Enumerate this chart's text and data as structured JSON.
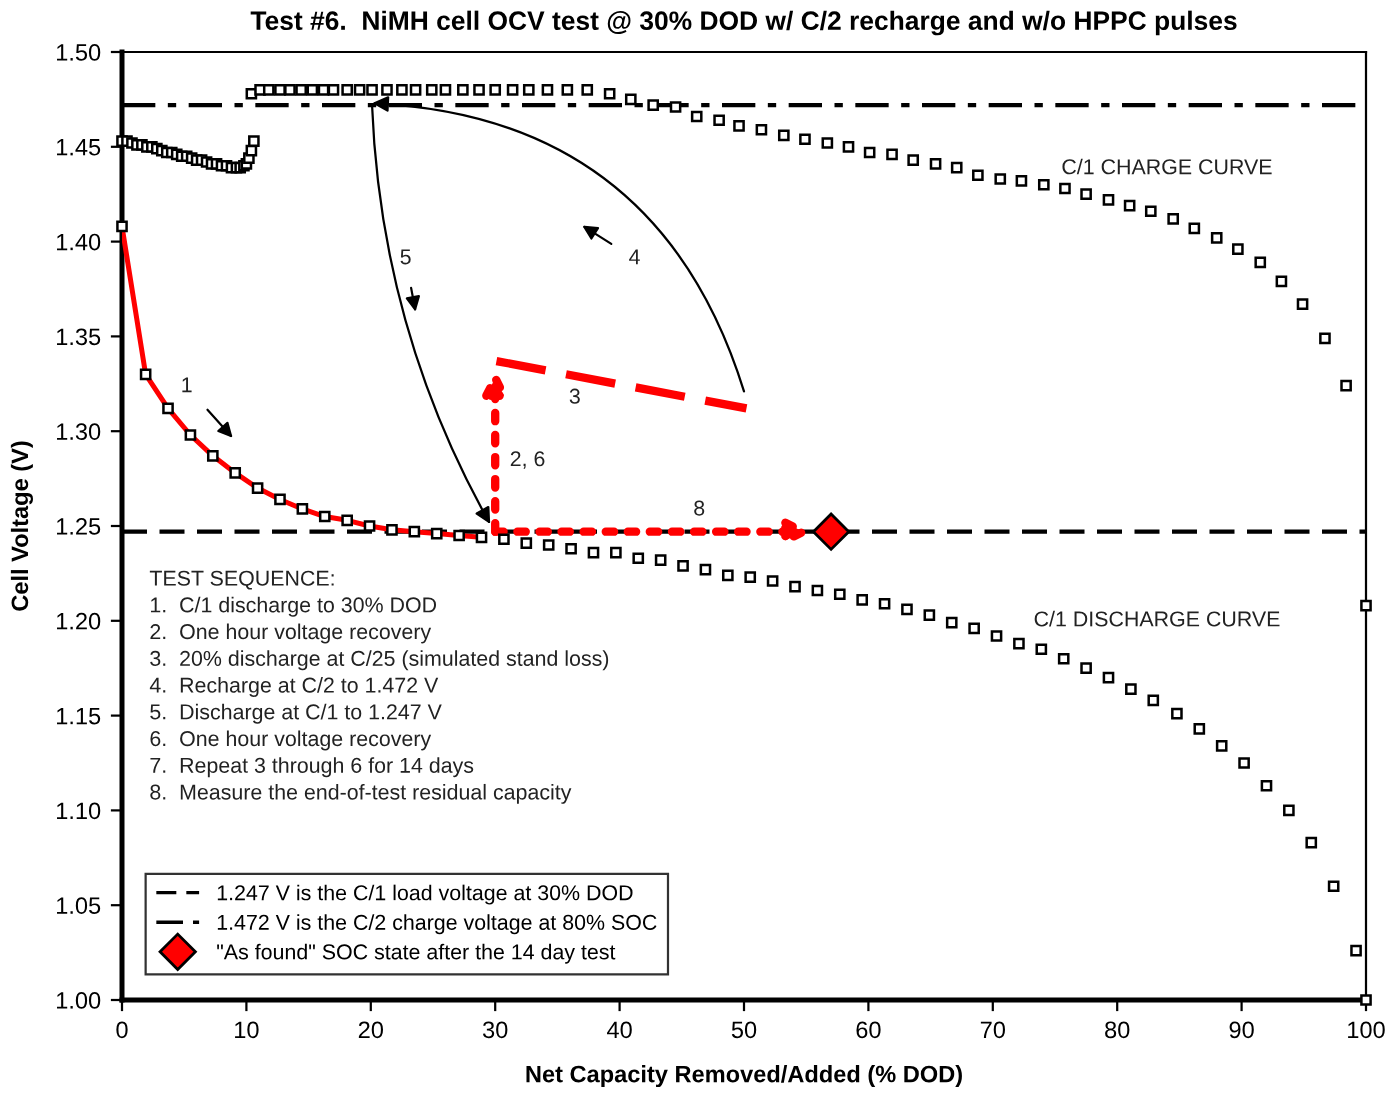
{
  "chart_data": {
    "type": "scatter",
    "title": "Test #6.  NiMH cell OCV test @ 30% DOD w/ C/2 recharge and w/o HPPC pulses",
    "xlabel": "Net Capacity Removed/Added (% DOD)",
    "ylabel": "Cell Voltage (V)",
    "xlim": [
      0,
      100
    ],
    "xticks": [
      0,
      10,
      20,
      30,
      40,
      50,
      60,
      70,
      80,
      90,
      100
    ],
    "ylim": [
      1.0,
      1.5
    ],
    "yticks": [
      {
        "value": 1.0,
        "label": "1.00"
      },
      {
        "value": 1.05,
        "label": "1.05"
      },
      {
        "value": 1.1,
        "label": "1.10"
      },
      {
        "value": 1.15,
        "label": "1.15"
      },
      {
        "value": 1.2,
        "label": "1.20"
      },
      {
        "value": 1.25,
        "label": "1.25"
      },
      {
        "value": 1.3,
        "label": "1.30"
      },
      {
        "value": 1.35,
        "label": "1.35"
      },
      {
        "value": 1.4,
        "label": "1.40"
      },
      {
        "value": 1.45,
        "label": "1.45"
      },
      {
        "value": 1.5,
        "label": "1.50"
      }
    ],
    "grid": false,
    "legend": "bottom left",
    "series": [
      {
        "marker": "square",
        "color": "#000000",
        "x": [
          0,
          0.4,
          0.8,
          1.2,
          1.6,
          2.0,
          2.4,
          2.8,
          3.2,
          3.6,
          4.0,
          4.4,
          4.8,
          5.2,
          5.6,
          6.0,
          6.4,
          6.8,
          7.2,
          7.6,
          8.0,
          8.4,
          8.8,
          9.2,
          9.5,
          9.8,
          10.0,
          10.2,
          10.4,
          10.6,
          10.4,
          11.1,
          11.8,
          12.7,
          13.5,
          14.4,
          15.3,
          16.2,
          17.0,
          18.1,
          19.1,
          20.1,
          21.3,
          22.5,
          23.6,
          24.9,
          26.0,
          27.4,
          28.7,
          30.0,
          31.4,
          32.7,
          34.2,
          35.8,
          37.4,
          39.2,
          40.9,
          42.7,
          44.5,
          46.2,
          48.0,
          49.6,
          51.4,
          53.2,
          54.9,
          56.7,
          58.4,
          60.1,
          61.9,
          63.6,
          65.4,
          67.1,
          68.8,
          70.6,
          72.3,
          74.1,
          75.8,
          77.5,
          79.3,
          81.0,
          82.7,
          84.5,
          86.2,
          88.0,
          89.7,
          91.5,
          93.2,
          94.9,
          96.7,
          98.4,
          100
        ],
        "values": [
          1.453,
          1.453,
          1.452,
          1.451,
          1.451,
          1.45,
          1.45,
          1.449,
          1.448,
          1.447,
          1.447,
          1.446,
          1.445,
          1.445,
          1.444,
          1.443,
          1.443,
          1.442,
          1.441,
          1.441,
          1.44,
          1.44,
          1.439,
          1.439,
          1.439,
          1.44,
          1.441,
          1.444,
          1.448,
          1.453,
          1.478,
          1.48,
          1.48,
          1.48,
          1.48,
          1.48,
          1.48,
          1.48,
          1.48,
          1.48,
          1.48,
          1.48,
          1.48,
          1.48,
          1.48,
          1.48,
          1.48,
          1.48,
          1.48,
          1.48,
          1.48,
          1.48,
          1.48,
          1.48,
          1.48,
          1.478,
          1.475,
          1.472,
          1.471,
          1.466,
          1.464,
          1.461,
          1.459,
          1.456,
          1.454,
          1.452,
          1.45,
          1.447,
          1.446,
          1.443,
          1.441,
          1.439,
          1.435,
          1.433,
          1.432,
          1.43,
          1.428,
          1.425,
          1.422,
          1.419,
          1.416,
          1.412,
          1.407,
          1.402,
          1.396,
          1.389,
          1.379,
          1.367,
          1.349,
          1.324,
          1.208
        ]
      },
      {
        "marker": "square",
        "color": "#000000",
        "x": [
          0,
          1.9,
          3.7,
          5.5,
          7.3,
          9.1,
          10.9,
          12.7,
          14.5,
          16.3,
          18.1,
          19.9,
          21.7,
          23.5,
          25.3,
          27.1,
          28.9,
          30.7,
          32.5,
          34.3,
          36.1,
          37.9,
          39.7,
          41.5,
          43.3,
          45.1,
          46.9,
          48.7,
          50.5,
          52.3,
          54.1,
          55.9,
          57.7,
          59.5,
          61.3,
          63.1,
          64.9,
          66.7,
          68.5,
          70.3,
          72.1,
          73.9,
          75.7,
          77.5,
          79.3,
          81.1,
          82.9,
          84.8,
          86.6,
          88.4,
          90.2,
          92.0,
          93.8,
          95.6,
          97.4,
          99.2,
          100
        ],
        "values": [
          1.408,
          1.33,
          1.312,
          1.298,
          1.287,
          1.278,
          1.27,
          1.264,
          1.259,
          1.255,
          1.253,
          1.25,
          1.248,
          1.247,
          1.246,
          1.245,
          1.244,
          1.243,
          1.241,
          1.24,
          1.238,
          1.236,
          1.236,
          1.233,
          1.232,
          1.229,
          1.227,
          1.224,
          1.223,
          1.221,
          1.218,
          1.216,
          1.214,
          1.211,
          1.209,
          1.206,
          1.203,
          1.199,
          1.196,
          1.192,
          1.188,
          1.185,
          1.18,
          1.175,
          1.17,
          1.164,
          1.158,
          1.151,
          1.143,
          1.134,
          1.125,
          1.113,
          1.1,
          1.083,
          1.06,
          1.026,
          1.0
        ]
      },
      {
        "type": "line",
        "color": "#ff0000",
        "line_style": "solid",
        "x": [
          0,
          1.9,
          3.7,
          5.5,
          7.3,
          9.1,
          10.9,
          12.7,
          14.5,
          16.3,
          18.1,
          19.9,
          21.7,
          23.5,
          25.3,
          27.1,
          28.9
        ],
        "values": [
          1.408,
          1.33,
          1.312,
          1.298,
          1.287,
          1.278,
          1.27,
          1.264,
          1.259,
          1.255,
          1.253,
          1.25,
          1.248,
          1.247,
          1.246,
          1.245,
          1.244
        ]
      },
      {
        "type": "line",
        "color": "#ff0000",
        "line_style": "dashed",
        "x": [
          30.1,
          50.2
        ],
        "values": [
          1.337,
          1.312
        ]
      },
      {
        "marker": "diamond",
        "color": "#ff0000",
        "name": "\"As found\" SOC state after the 14 day test",
        "x": [
          57.0
        ],
        "values": [
          1.247
        ]
      }
    ],
    "ref_lines": [
      {
        "axis": "y",
        "value": 1.247,
        "label": "1.247 V is the C/1 load voltage at 30% DOD",
        "color": "#000000",
        "line_style": "dashed"
      },
      {
        "axis": "y",
        "value": 1.472,
        "label": "1.472 V is the C/2 charge voltage at 80% SOC",
        "color": "#000000",
        "line_style": "dashdot"
      }
    ],
    "annotations": [
      "1",
      "4",
      "5",
      "2, 6",
      "3",
      "8",
      "C/1 CHARGE CURVE",
      "C/1 DISCHARGE CURVE",
      "TEST SEQUENCE:",
      "1.  C/1 discharge to 30% DOD",
      "2.  One hour voltage recovery",
      "3.  20% discharge at C/25 (simulated stand loss)",
      "4.  Recharge at C/2 to 1.472 V",
      "5.  Discharge at C/1 to 1.247 V",
      "6.  One hour voltage recovery",
      "7.  Repeat 3 through 6 for 14 days",
      "8.  Measure the end-of-test residual capacity"
    ]
  }
}
